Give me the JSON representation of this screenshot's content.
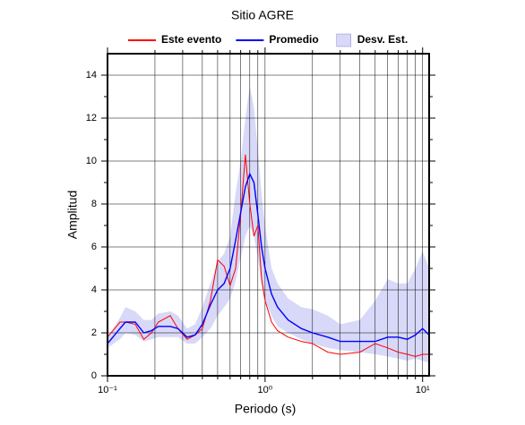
{
  "chart_data": {
    "type": "line",
    "title": "Sitio AGRE",
    "x_label": "Periodo (s)",
    "y_label": "Amplitud",
    "x_scale": "log",
    "xlim": [
      0.1,
      11
    ],
    "ylim": [
      0,
      15
    ],
    "xticks": [
      {
        "value": 0.1,
        "label": "10⁻¹"
      },
      {
        "value": 1,
        "label": "10⁰"
      },
      {
        "value": 10,
        "label": "10¹"
      }
    ],
    "xminorticks": [
      0.2,
      0.3,
      0.4,
      0.5,
      0.6,
      0.7,
      0.8,
      0.9,
      2,
      3,
      4,
      5,
      6,
      7,
      8,
      9
    ],
    "yticks": [
      0,
      2,
      4,
      6,
      8,
      10,
      12,
      14
    ],
    "yminorticks": [
      1,
      3,
      5,
      7,
      9,
      11,
      13
    ],
    "grid": true,
    "legend": "top",
    "x": [
      0.1,
      0.12,
      0.13,
      0.15,
      0.17,
      0.19,
      0.21,
      0.25,
      0.28,
      0.32,
      0.36,
      0.4,
      0.45,
      0.5,
      0.55,
      0.6,
      0.65,
      0.7,
      0.75,
      0.8,
      0.85,
      0.9,
      0.95,
      1.0,
      1.1,
      1.2,
      1.4,
      1.7,
      2.0,
      2.5,
      3.0,
      4.0,
      5.0,
      6.0,
      7.0,
      8.0,
      9.0,
      10,
      11
    ],
    "series": [
      {
        "name": "Este evento",
        "color": "#ff0000",
        "values": [
          1.8,
          2.5,
          2.5,
          2.4,
          1.7,
          2.0,
          2.5,
          2.8,
          2.2,
          1.7,
          1.9,
          2.2,
          3.5,
          5.4,
          5.1,
          4.2,
          5.0,
          7.5,
          10.3,
          8.0,
          6.5,
          7.0,
          4.5,
          3.5,
          2.5,
          2.1,
          1.8,
          1.6,
          1.5,
          1.1,
          1.0,
          1.1,
          1.5,
          1.3,
          1.1,
          1.0,
          0.9,
          1.0,
          1.0
        ]
      },
      {
        "name": "Promedio",
        "color": "#0000ff",
        "values": [
          1.5,
          2.2,
          2.5,
          2.5,
          2.0,
          2.1,
          2.3,
          2.3,
          2.2,
          1.8,
          1.9,
          2.4,
          3.3,
          4.0,
          4.3,
          5.0,
          6.3,
          7.6,
          8.8,
          9.4,
          9.0,
          7.5,
          6.0,
          5.0,
          3.8,
          3.2,
          2.6,
          2.2,
          2.0,
          1.8,
          1.6,
          1.6,
          1.6,
          1.8,
          1.8,
          1.7,
          1.9,
          2.2,
          1.9
        ]
      }
    ],
    "band": {
      "name": "Desv. Est.",
      "color": "#d8d8f8",
      "lower": [
        1.3,
        1.7,
        2.0,
        1.9,
        1.6,
        1.7,
        1.8,
        1.8,
        1.8,
        1.5,
        1.5,
        1.8,
        2.2,
        2.8,
        3.2,
        3.6,
        4.4,
        5.5,
        6.5,
        7.0,
        6.5,
        5.5,
        4.3,
        3.5,
        2.8,
        2.3,
        2.0,
        1.7,
        1.5,
        1.3,
        1.2,
        1.1,
        1.0,
        0.9,
        0.8,
        0.7,
        0.8,
        0.7,
        0.6
      ],
      "upper": [
        1.8,
        2.7,
        3.2,
        3.0,
        2.6,
        2.6,
        2.9,
        3.0,
        2.8,
        2.2,
        2.4,
        3.2,
        4.3,
        5.3,
        5.7,
        6.5,
        8.5,
        10.0,
        12.0,
        13.5,
        12.5,
        10.5,
        8.5,
        7.0,
        5.0,
        4.3,
        3.6,
        3.2,
        3.1,
        2.8,
        2.4,
        2.6,
        3.5,
        4.5,
        4.3,
        4.3,
        5.0,
        5.8,
        5.0
      ]
    }
  }
}
